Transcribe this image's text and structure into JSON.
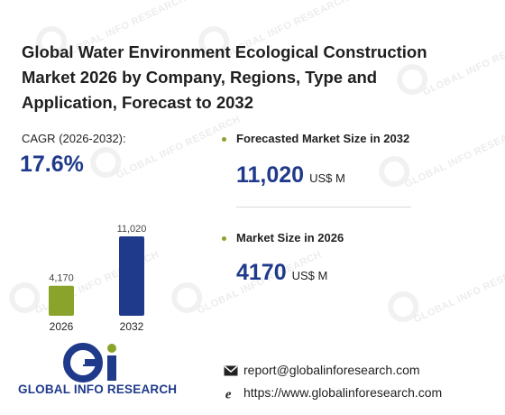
{
  "title": "Global Water Environment Ecological Construction Market 2026 by Company, Regions, Type and Application, Forecast to 2032",
  "watermark_text": "GLOBAL INFO RESEARCH",
  "cagr": {
    "label": "CAGR",
    "period": "(2026-2032):",
    "value": "17.6%"
  },
  "forecast": {
    "label": "Forecasted Market Size in 2032",
    "value": "11,020",
    "unit": "US$ M"
  },
  "current": {
    "label": "Market Size in 2026",
    "value": "4170",
    "unit": "US$ M"
  },
  "chart_data": {
    "type": "bar",
    "categories": [
      "2026",
      "2032"
    ],
    "values": [
      4170,
      11020
    ],
    "value_labels": [
      "4,170",
      "11,020"
    ],
    "colors": [
      "#8aa32b",
      "#1f3a8a"
    ],
    "ylim": [
      0,
      11020
    ]
  },
  "logo": {
    "text": "GLOBAL INFO RESEARCH",
    "accent": "#8aa32b",
    "brand": "#1f3a8a"
  },
  "contact": {
    "email": "report@globalinforesearch.com",
    "website": "https://www.globalinforesearch.com",
    "email_icon": "envelope-icon",
    "web_icon": "browser-icon"
  }
}
